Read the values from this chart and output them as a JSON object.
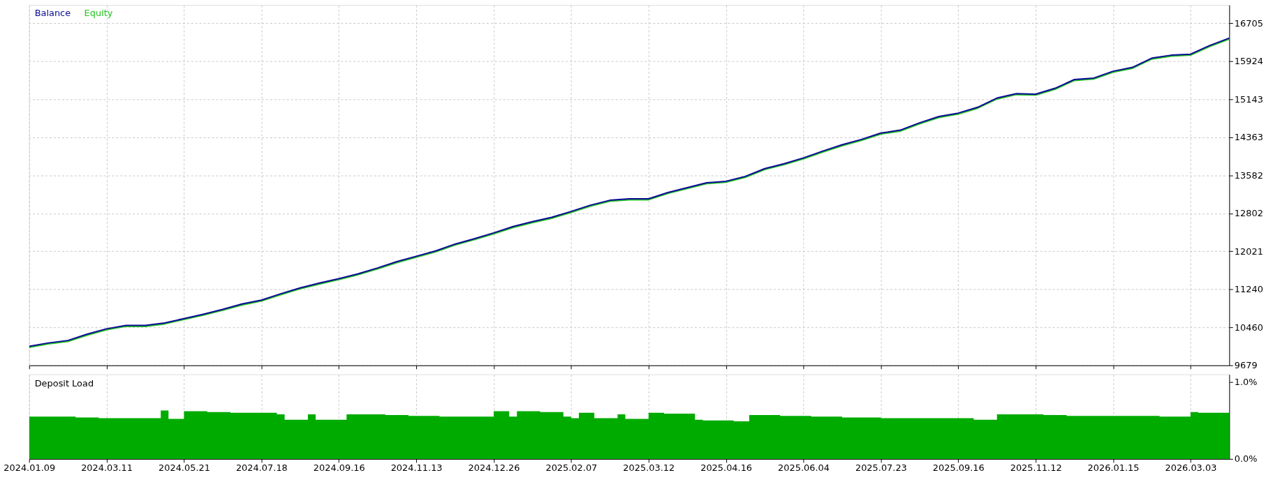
{
  "chart_data": [
    {
      "type": "line",
      "legend": "top left",
      "grid": true,
      "tick_labels": "y",
      "categories": [
        "2024.01.09",
        null,
        null,
        null,
        "2024.03.11",
        null,
        null,
        null,
        "2024.05.21",
        null,
        null,
        null,
        "2024.07.18",
        null,
        null,
        null,
        "2024.09.16",
        null,
        null,
        null,
        "2024.11.13",
        null,
        null,
        null,
        "2024.12.26",
        null,
        null,
        null,
        "2025.02.07",
        null,
        null,
        null,
        "2025.03.12",
        null,
        null,
        null,
        "2025.04.16",
        null,
        null,
        null,
        "2025.06.04",
        null,
        null,
        null,
        "2025.07.23",
        null,
        null,
        null,
        "2025.09.16",
        null,
        null,
        null,
        "2025.11.12",
        null,
        null,
        null,
        "2026.01.15",
        null,
        null,
        null,
        "2026.03.03",
        null,
        null
      ],
      "series": [
        {
          "name": "Balance",
          "color": "#0a0a96",
          "values": [
            10070,
            10140,
            10190,
            10320,
            10430,
            10500,
            10500,
            10550,
            10640,
            10730,
            10830,
            10940,
            11020,
            11150,
            11270,
            11370,
            11460,
            11560,
            11680,
            11810,
            11920,
            12030,
            12170,
            12280,
            12400,
            12530,
            12630,
            12720,
            12840,
            12970,
            13070,
            13100,
            13100,
            13230,
            13330,
            13430,
            13460,
            13560,
            13720,
            13820,
            13940,
            14080,
            14210,
            14320,
            14450,
            14510,
            14660,
            14790,
            14860,
            14980,
            15170,
            15260,
            15250,
            15370,
            15550,
            15580,
            15720,
            15800,
            15990,
            16050,
            16070,
            16250,
            16400
          ]
        },
        {
          "name": "Equity",
          "color": "#22c41e",
          "values": [
            10050,
            10120,
            10170,
            10300,
            10410,
            10480,
            10480,
            10530,
            10620,
            10710,
            10810,
            10920,
            11000,
            11130,
            11250,
            11350,
            11440,
            11540,
            11660,
            11790,
            11900,
            12010,
            12150,
            12260,
            12380,
            12510,
            12610,
            12700,
            12820,
            12950,
            13050,
            13080,
            13080,
            13210,
            13310,
            13410,
            13440,
            13540,
            13700,
            13800,
            13920,
            14060,
            14190,
            14300,
            14430,
            14490,
            14640,
            14770,
            14840,
            14960,
            15150,
            15240,
            15230,
            15350,
            15530,
            15560,
            15700,
            15780,
            15970,
            16030,
            16050,
            16230,
            16380
          ]
        }
      ],
      "ylim": [
        9679,
        17080
      ],
      "yticks": [
        9679,
        10460,
        11240,
        12021,
        12802,
        13582,
        14363,
        15143,
        15924,
        16705
      ]
    },
    {
      "type": "area",
      "title": "Deposit Load",
      "grid": "x",
      "color": "#00ab00",
      "categories": [
        "2024.01.09",
        null,
        null,
        null,
        null,
        null,
        null,
        null,
        null,
        null,
        "2024.03.11",
        null,
        null,
        null,
        null,
        null,
        null,
        null,
        null,
        null,
        "2024.05.21",
        null,
        null,
        null,
        null,
        null,
        null,
        null,
        null,
        null,
        "2024.07.18",
        null,
        null,
        null,
        null,
        null,
        null,
        null,
        null,
        null,
        "2024.09.16",
        null,
        null,
        null,
        null,
        null,
        null,
        null,
        null,
        null,
        "2024.11.13",
        null,
        null,
        null,
        null,
        null,
        null,
        null,
        null,
        null,
        "2024.12.26",
        null,
        null,
        null,
        null,
        null,
        null,
        null,
        null,
        null,
        "2025.02.07",
        null,
        null,
        null,
        null,
        null,
        null,
        null,
        null,
        null,
        "2025.03.12",
        null,
        null,
        null,
        null,
        null,
        null,
        null,
        null,
        null,
        "2025.04.16",
        null,
        null,
        null,
        null,
        null,
        null,
        null,
        null,
        null,
        "2025.06.04",
        null,
        null,
        null,
        null,
        null,
        null,
        null,
        null,
        null,
        "2025.07.23",
        null,
        null,
        null,
        null,
        null,
        null,
        null,
        null,
        null,
        "2025.09.16",
        null,
        null,
        null,
        null,
        null,
        null,
        null,
        null,
        null,
        "2025.11.12",
        null,
        null,
        null,
        null,
        null,
        null,
        null,
        null,
        null,
        "2026.01.15",
        null,
        null,
        null,
        null,
        null,
        null,
        null,
        null,
        null,
        "2026.03.03",
        null,
        null,
        null,
        null,
        null
      ],
      "values": [
        0.55,
        0.55,
        0.55,
        0.55,
        0.55,
        0.55,
        0.54,
        0.54,
        0.54,
        0.53,
        0.53,
        0.53,
        0.53,
        0.53,
        0.53,
        0.53,
        0.53,
        0.63,
        0.52,
        0.52,
        0.62,
        0.62,
        0.62,
        0.61,
        0.61,
        0.61,
        0.6,
        0.6,
        0.6,
        0.6,
        0.6,
        0.6,
        0.58,
        0.51,
        0.51,
        0.51,
        0.58,
        0.51,
        0.51,
        0.51,
        0.51,
        0.58,
        0.58,
        0.58,
        0.58,
        0.58,
        0.57,
        0.57,
        0.57,
        0.56,
        0.56,
        0.56,
        0.56,
        0.55,
        0.55,
        0.55,
        0.55,
        0.55,
        0.55,
        0.55,
        0.62,
        0.62,
        0.55,
        0.62,
        0.62,
        0.62,
        0.61,
        0.61,
        0.61,
        0.55,
        0.53,
        0.6,
        0.6,
        0.53,
        0.53,
        0.53,
        0.58,
        0.52,
        0.52,
        0.52,
        0.6,
        0.6,
        0.59,
        0.59,
        0.59,
        0.59,
        0.51,
        0.5,
        0.5,
        0.5,
        0.5,
        0.49,
        0.49,
        0.57,
        0.57,
        0.57,
        0.57,
        0.56,
        0.56,
        0.56,
        0.56,
        0.55,
        0.55,
        0.55,
        0.55,
        0.54,
        0.54,
        0.54,
        0.54,
        0.54,
        0.53,
        0.53,
        0.53,
        0.53,
        0.53,
        0.53,
        0.53,
        0.53,
        0.53,
        0.53,
        0.53,
        0.53,
        0.51,
        0.51,
        0.51,
        0.58,
        0.58,
        0.58,
        0.58,
        0.58,
        0.58,
        0.57,
        0.57,
        0.57,
        0.56,
        0.56,
        0.56,
        0.56,
        0.56,
        0.56,
        0.56,
        0.56,
        0.56,
        0.56,
        0.56,
        0.56,
        0.55,
        0.55,
        0.55,
        0.55,
        0.61,
        0.6,
        0.6,
        0.6,
        0.6,
        0.6
      ],
      "ylim": [
        0,
        1.1
      ],
      "yticks": [
        {
          "value": 0,
          "label": "0.0%"
        },
        {
          "value": 1,
          "label": "1.0%"
        }
      ]
    }
  ]
}
